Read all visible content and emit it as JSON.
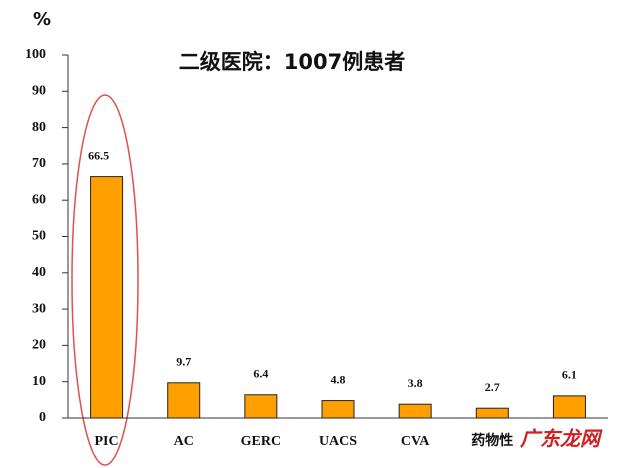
{
  "chart_data": {
    "type": "bar",
    "title": "二级医院：1007例患者",
    "y_label": "%",
    "categories": [
      "PIC",
      "AC",
      "GERC",
      "UACS",
      "CVA",
      "药物性",
      null
    ],
    "values": [
      66.5,
      9.7,
      6.4,
      4.8,
      3.8,
      2.7,
      6.1
    ],
    "color": "#ffa000",
    "ylim": [
      0,
      100
    ],
    "yticks": [
      0,
      10,
      20,
      30,
      40,
      50,
      60,
      70,
      80,
      90,
      100
    ],
    "grid": false,
    "watermark": "广东龙网"
  }
}
